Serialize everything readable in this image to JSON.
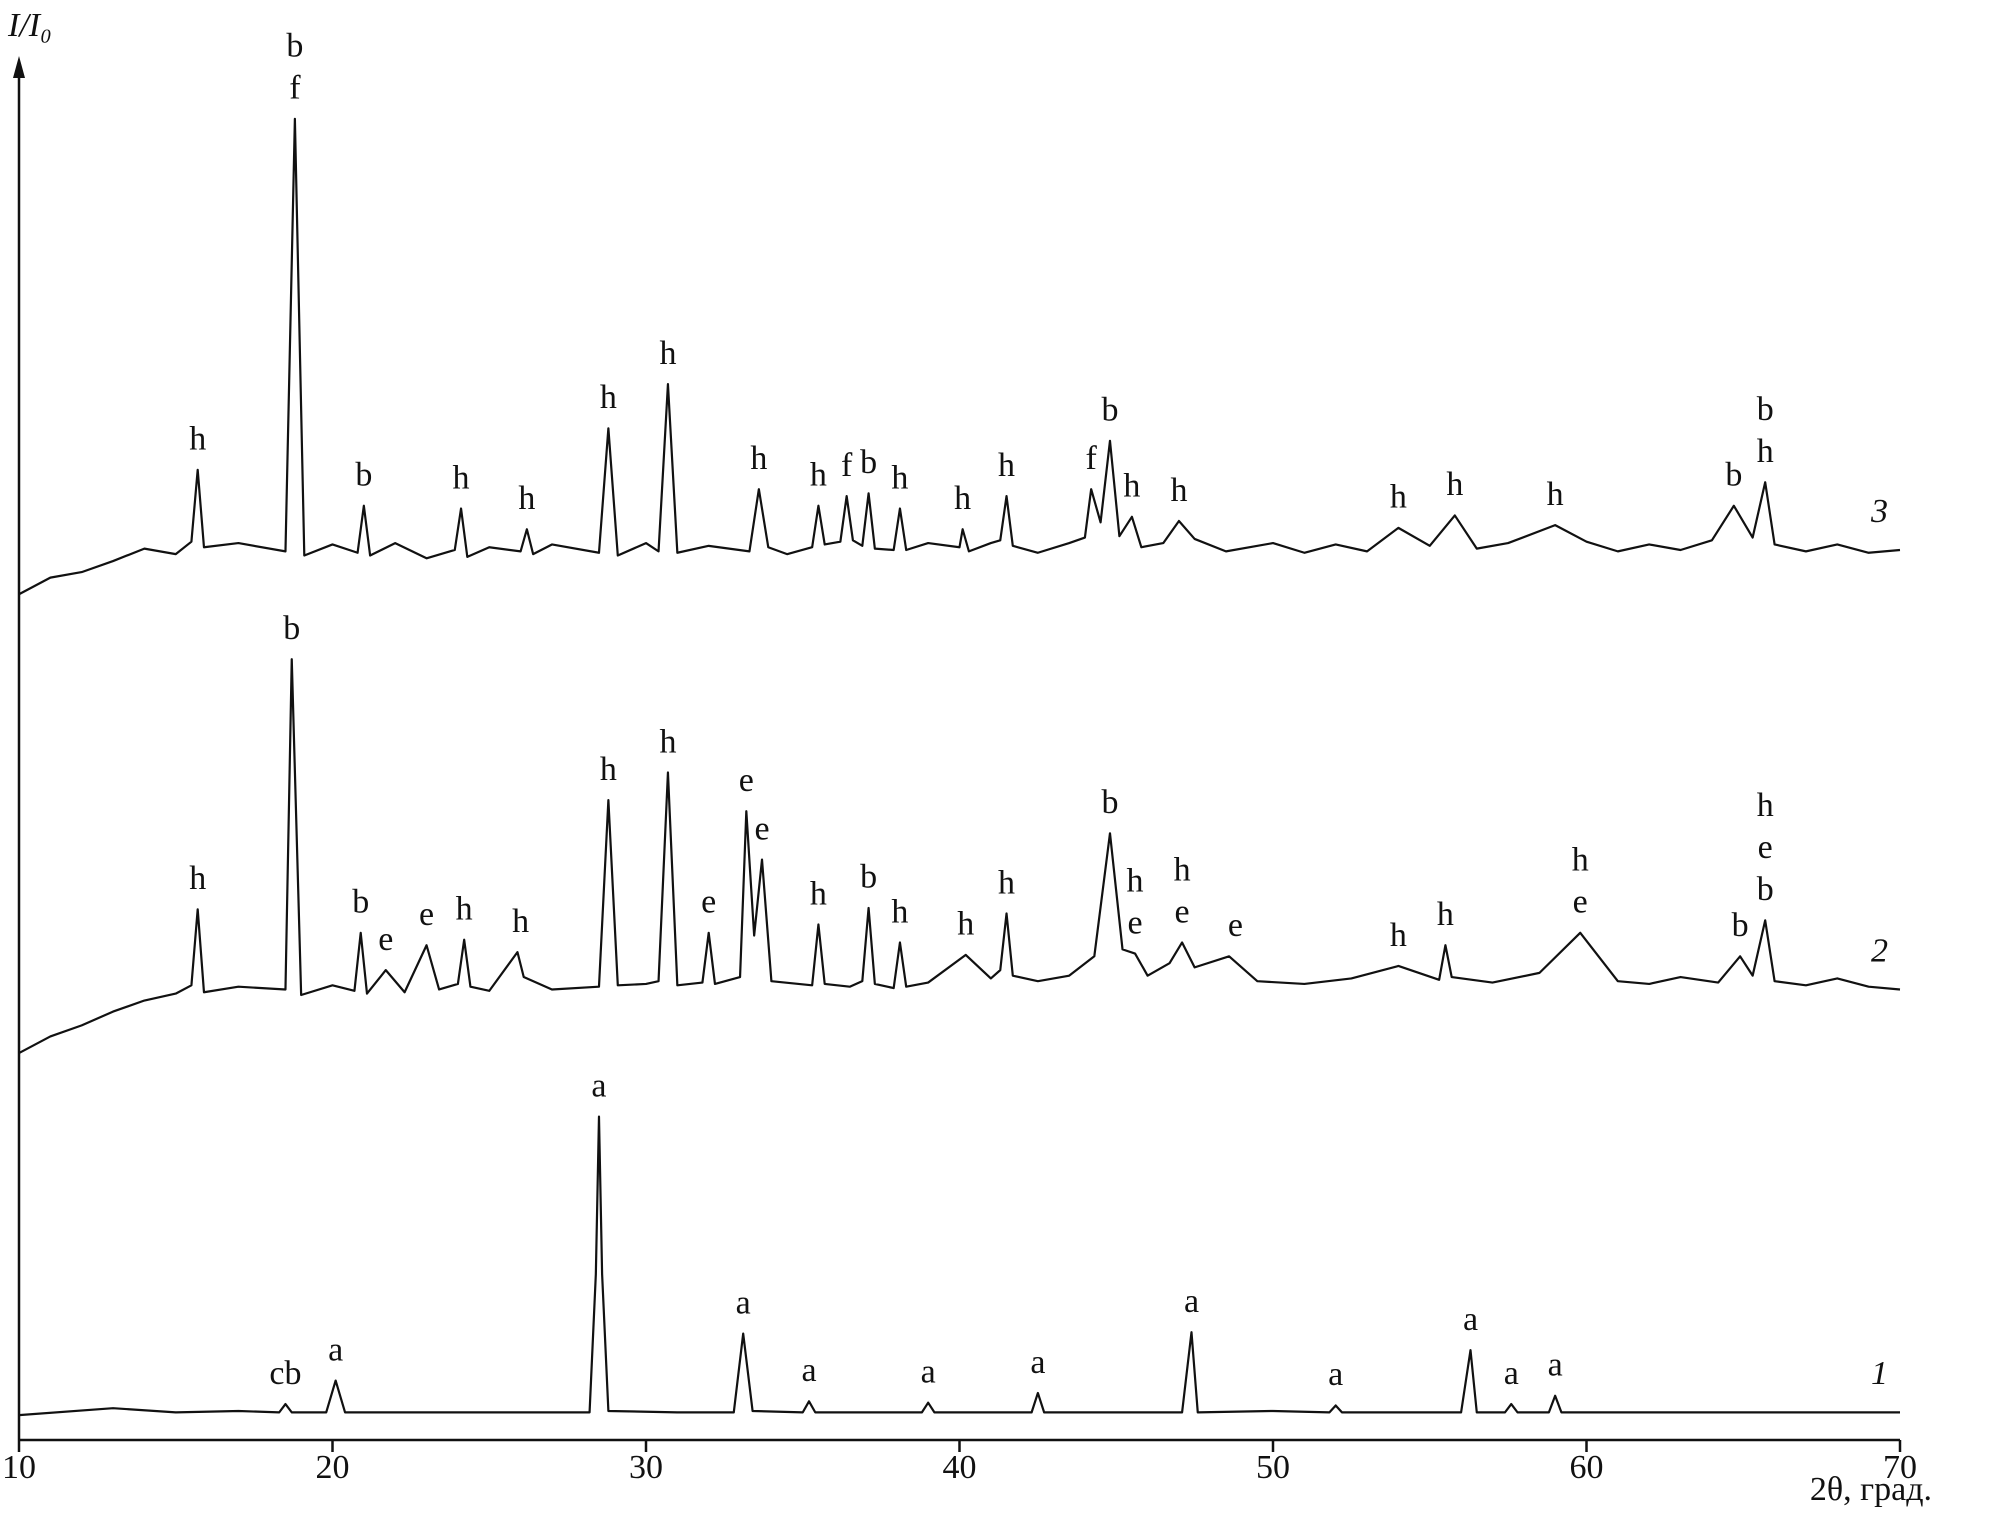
{
  "chart_data": {
    "type": "line",
    "x_label": "2θ, град.",
    "y_label": "I/I₀",
    "xlim": [
      10,
      70
    ],
    "xticks": [
      10,
      20,
      30,
      40,
      50,
      60,
      70
    ],
    "ylim": [
      0,
      100
    ],
    "series": [
      {
        "name": "1",
        "color": "#111111",
        "x": [
          10,
          13,
          15,
          17,
          18.3,
          18.5,
          18.7,
          19.8,
          20.1,
          20.4,
          23,
          26,
          28.2,
          28.4,
          28.5,
          28.6,
          28.8,
          31,
          32.8,
          33.1,
          33.4,
          35,
          35.2,
          35.4,
          38.8,
          39,
          39.2,
          42.3,
          42.5,
          42.7,
          45,
          47.1,
          47.4,
          47.6,
          50,
          51.8,
          52,
          52.2,
          56,
          56.3,
          56.5,
          57.4,
          57.6,
          57.8,
          58.8,
          59,
          59.2,
          62,
          66,
          70
        ],
        "values": [
          1.8,
          2.3,
          2.0,
          2.1,
          2.0,
          2.6,
          2.0,
          2.0,
          4.3,
          2.0,
          2.0,
          2.0,
          2.0,
          12.0,
          23.4,
          12.0,
          2.1,
          2.0,
          2.0,
          7.7,
          2.1,
          2.0,
          2.8,
          2.0,
          2.0,
          2.7,
          2.0,
          2.0,
          3.4,
          2.0,
          2.0,
          2.0,
          7.8,
          2.0,
          2.1,
          2.0,
          2.5,
          2.0,
          2.0,
          6.5,
          2.0,
          2.0,
          2.6,
          2.0,
          2.0,
          3.2,
          2.0,
          2.0,
          2.0,
          2.0
        ],
        "annotations": [
          {
            "x": 18.5,
            "labels": [
              "cb"
            ]
          },
          {
            "x": 20.1,
            "labels": [
              "a"
            ]
          },
          {
            "x": 28.5,
            "labels": [
              "a"
            ]
          },
          {
            "x": 33.1,
            "labels": [
              "a"
            ]
          },
          {
            "x": 35.2,
            "labels": [
              "a"
            ]
          },
          {
            "x": 39,
            "labels": [
              "a"
            ]
          },
          {
            "x": 42.5,
            "labels": [
              "a"
            ]
          },
          {
            "x": 47.4,
            "labels": [
              "a"
            ]
          },
          {
            "x": 52,
            "labels": [
              "a"
            ]
          },
          {
            "x": 56.3,
            "labels": [
              "a"
            ]
          },
          {
            "x": 57.6,
            "labels": [
              "a"
            ]
          },
          {
            "x": 59,
            "labels": [
              "a"
            ]
          }
        ]
      },
      {
        "name": "2",
        "color": "#111111",
        "x": [
          10,
          11,
          12,
          13,
          14,
          15,
          15.5,
          15.7,
          15.9,
          17,
          18.5,
          18.7,
          19,
          20,
          20.7,
          20.9,
          21.1,
          21.7,
          22.3,
          23,
          23.4,
          24,
          24.2,
          24.4,
          25,
          25.9,
          26.1,
          27,
          28.5,
          28.8,
          29.1,
          30,
          30.4,
          30.7,
          31,
          31.8,
          32,
          32.2,
          33,
          33.2,
          33.45,
          33.7,
          34,
          35.3,
          35.5,
          35.7,
          36.5,
          36.9,
          37.1,
          37.3,
          37.9,
          38.1,
          38.3,
          39,
          40.2,
          41,
          41.3,
          41.5,
          41.7,
          42.5,
          43.5,
          44.3,
          44.8,
          45.2,
          45.6,
          46,
          46.7,
          47.1,
          47.5,
          48.6,
          49.5,
          51,
          52.5,
          54,
          55.3,
          55.5,
          55.7,
          57,
          58.5,
          59.8,
          61,
          62,
          63,
          64.2,
          64.9,
          65.3,
          65.7,
          66,
          67,
          68,
          69,
          70
        ],
        "values": [
          28.0,
          29.2,
          30.0,
          31.0,
          31.8,
          32.3,
          32.9,
          38.4,
          32.4,
          32.8,
          32.6,
          56.5,
          32.2,
          32.9,
          32.5,
          36.7,
          32.3,
          34.0,
          32.4,
          35.8,
          32.6,
          33.0,
          36.2,
          32.8,
          32.5,
          35.3,
          33.5,
          32.6,
          32.8,
          46.3,
          32.9,
          33.0,
          33.2,
          48.3,
          32.9,
          33.1,
          36.7,
          33.0,
          33.5,
          45.5,
          36.5,
          42.0,
          33.2,
          32.9,
          37.3,
          33.0,
          32.8,
          33.2,
          38.5,
          33.0,
          32.7,
          36.0,
          32.8,
          33.1,
          35.1,
          33.4,
          34.0,
          38.1,
          33.6,
          33.2,
          33.6,
          35.0,
          43.9,
          35.5,
          35.2,
          33.6,
          34.5,
          36.0,
          34.2,
          35.0,
          33.2,
          33.0,
          33.4,
          34.3,
          33.3,
          35.8,
          33.5,
          33.1,
          33.8,
          36.7,
          33.2,
          33.0,
          33.5,
          33.1,
          35.0,
          33.6,
          37.6,
          33.2,
          32.9,
          33.4,
          32.8,
          32.6
        ],
        "annotations": [
          {
            "x": 15.7,
            "labels": [
              "h"
            ]
          },
          {
            "x": 18.7,
            "labels": [
              "b"
            ]
          },
          {
            "x": 20.9,
            "labels": [
              "b"
            ]
          },
          {
            "x": 21.7,
            "labels": [
              "e"
            ]
          },
          {
            "x": 23,
            "labels": [
              "e"
            ]
          },
          {
            "x": 24.2,
            "labels": [
              "h"
            ]
          },
          {
            "x": 26,
            "labels": [
              "h"
            ]
          },
          {
            "x": 28.8,
            "labels": [
              "h"
            ]
          },
          {
            "x": 30.7,
            "labels": [
              "h"
            ]
          },
          {
            "x": 32,
            "labels": [
              "e"
            ]
          },
          {
            "x": 33.2,
            "labels": [
              "e"
            ]
          },
          {
            "x": 33.7,
            "labels": [
              "e"
            ]
          },
          {
            "x": 35.5,
            "labels": [
              "h"
            ]
          },
          {
            "x": 37.1,
            "labels": [
              "b"
            ]
          },
          {
            "x": 38.1,
            "labels": [
              "h"
            ]
          },
          {
            "x": 40.2,
            "labels": [
              "h"
            ]
          },
          {
            "x": 41.5,
            "labels": [
              "h"
            ]
          },
          {
            "x": 44.8,
            "labels": [
              "b"
            ]
          },
          {
            "x": 45.6,
            "labels": [
              "h",
              "e"
            ]
          },
          {
            "x": 47.1,
            "labels": [
              "h",
              "e"
            ]
          },
          {
            "x": 48.8,
            "labels": [
              "e"
            ]
          },
          {
            "x": 54,
            "labels": [
              "h"
            ]
          },
          {
            "x": 55.5,
            "labels": [
              "h"
            ]
          },
          {
            "x": 59.8,
            "labels": [
              "h",
              "e"
            ]
          },
          {
            "x": 64.9,
            "labels": [
              "b"
            ]
          },
          {
            "x": 65.7,
            "labels": [
              "h",
              "e",
              "b"
            ]
          }
        ]
      },
      {
        "name": "3",
        "color": "#111111",
        "x": [
          10,
          11,
          12,
          13,
          14,
          15,
          15.5,
          15.7,
          15.9,
          17,
          18.5,
          18.8,
          19.1,
          20,
          20.8,
          21,
          21.2,
          22,
          23,
          23.9,
          24.1,
          24.3,
          25,
          26,
          26.2,
          26.4,
          27,
          28.5,
          28.8,
          29.1,
          30,
          30.4,
          30.7,
          31,
          32,
          33.3,
          33.6,
          33.9,
          34.5,
          35.3,
          35.5,
          35.7,
          36.2,
          36.4,
          36.6,
          36.9,
          37.1,
          37.3,
          37.9,
          38.1,
          38.3,
          39,
          40,
          40.1,
          40.3,
          41,
          41.3,
          41.5,
          41.7,
          42.5,
          43.5,
          44,
          44.2,
          44.5,
          44.8,
          45.1,
          45.5,
          45.8,
          46.5,
          47,
          47.5,
          48.5,
          50,
          51,
          52,
          53,
          54,
          55,
          55.8,
          56.5,
          57.5,
          59,
          60,
          61,
          62,
          63,
          64,
          64.7,
          65.3,
          65.7,
          66,
          67,
          68,
          69,
          70
        ],
        "values": [
          61.2,
          62.4,
          62.8,
          63.6,
          64.5,
          64.1,
          65.0,
          70.2,
          64.6,
          64.9,
          64.3,
          95.6,
          64.0,
          64.8,
          64.2,
          67.6,
          64.0,
          64.9,
          63.8,
          64.4,
          67.4,
          63.9,
          64.6,
          64.3,
          65.9,
          64.1,
          64.8,
          64.2,
          73.2,
          64.0,
          64.9,
          64.3,
          76.4,
          64.2,
          64.7,
          64.3,
          68.8,
          64.6,
          64.1,
          64.6,
          67.6,
          64.8,
          65.0,
          68.3,
          65.1,
          64.7,
          68.5,
          64.5,
          64.4,
          67.4,
          64.4,
          64.9,
          64.6,
          65.9,
          64.3,
          64.9,
          65.1,
          68.3,
          64.7,
          64.2,
          64.9,
          65.3,
          68.8,
          66.4,
          72.3,
          65.4,
          66.8,
          64.6,
          64.9,
          66.5,
          65.2,
          64.3,
          64.9,
          64.2,
          64.8,
          64.3,
          66.0,
          64.7,
          66.9,
          64.5,
          64.9,
          66.2,
          65.0,
          64.3,
          64.8,
          64.4,
          65.1,
          67.6,
          65.3,
          69.3,
          64.8,
          64.3,
          64.8,
          64.2,
          64.4
        ],
        "annotations": [
          {
            "x": 15.7,
            "labels": [
              "h"
            ]
          },
          {
            "x": 18.8,
            "labels": [
              "b",
              "f"
            ]
          },
          {
            "x": 21,
            "labels": [
              "b"
            ]
          },
          {
            "x": 24.1,
            "labels": [
              "h"
            ]
          },
          {
            "x": 26.2,
            "labels": [
              "h"
            ]
          },
          {
            "x": 28.8,
            "labels": [
              "h"
            ]
          },
          {
            "x": 30.7,
            "labels": [
              "h"
            ]
          },
          {
            "x": 33.6,
            "labels": [
              "h"
            ]
          },
          {
            "x": 35.5,
            "labels": [
              "h"
            ]
          },
          {
            "x": 36.4,
            "labels": [
              "f"
            ]
          },
          {
            "x": 37.1,
            "labels": [
              "b"
            ]
          },
          {
            "x": 38.1,
            "labels": [
              "h"
            ]
          },
          {
            "x": 40.1,
            "labels": [
              "h"
            ]
          },
          {
            "x": 41.5,
            "labels": [
              "h"
            ]
          },
          {
            "x": 44.2,
            "labels": [
              "f"
            ]
          },
          {
            "x": 44.8,
            "labels": [
              "b"
            ]
          },
          {
            "x": 45.5,
            "labels": [
              "h"
            ]
          },
          {
            "x": 47,
            "labels": [
              "h"
            ]
          },
          {
            "x": 54,
            "labels": [
              "h"
            ]
          },
          {
            "x": 55.8,
            "labels": [
              "h"
            ]
          },
          {
            "x": 59,
            "labels": [
              "h"
            ]
          },
          {
            "x": 64.7,
            "labels": [
              "b"
            ]
          },
          {
            "x": 65.7,
            "labels": [
              "b",
              "h"
            ]
          }
        ]
      }
    ]
  }
}
